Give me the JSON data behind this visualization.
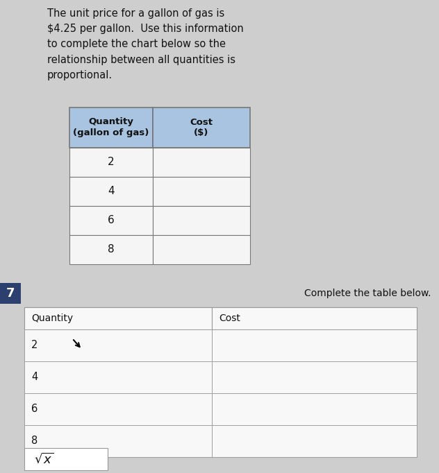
{
  "bg_color": "#cecece",
  "white_bg": "#f0f0f0",
  "text_intro": "The unit price for a gallon of gas is\n$4.25 per gallon.  Use this information\nto complete the chart below so the\nrelationship between all quantities is\nproportional.",
  "table1_header": [
    "Quantity\n(gallon of gas)",
    "Cost\n($)"
  ],
  "table1_rows": [
    "2",
    "4",
    "6",
    "8"
  ],
  "table1_header_bg": "#a8c4e0",
  "table1_header_color": "#111111",
  "table1_cell_bg": "#f5f5f5",
  "table1_border_color": "#777777",
  "number_badge": "7",
  "number_badge_bg": "#2c4070",
  "number_badge_color": "#ffffff",
  "complete_text": "Complete the table below.",
  "table2_header": [
    "Quantity",
    "Cost"
  ],
  "table2_rows": [
    "2",
    "4",
    "6",
    "8"
  ],
  "table2_bg": "#f8f8f8",
  "table2_border_color": "#999999",
  "sqrt_label": "$\\sqrt{x}$",
  "sqrt_box_bg": "#ffffff",
  "sqrt_border_color": "#999999"
}
